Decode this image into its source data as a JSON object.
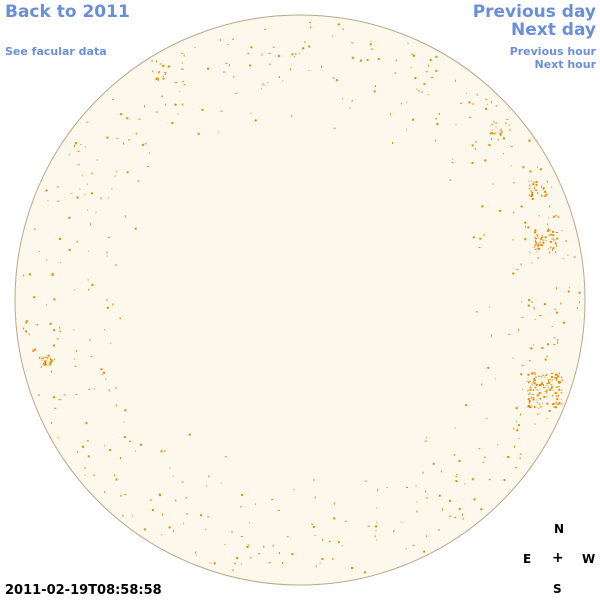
{
  "nav": {
    "back_label": "Back to 2011",
    "facular_label": "See facular data",
    "prev_day_label": "Previous day",
    "next_day_label": "Next day",
    "prev_hour_label": "Previous hour",
    "next_hour_label": "Next hour"
  },
  "timestamp": "2011-02-19T08:58:58",
  "compass": {
    "north": "N",
    "east": "E",
    "center": "+",
    "west": "W",
    "south": "S"
  },
  "colors": {
    "disk_fill": "#fdf8ec",
    "disk_border": "#b8a88c",
    "facula": "#e88a00",
    "link": "#6a8fd8"
  },
  "icons": {
    "compass_center": "plus-icon"
  }
}
